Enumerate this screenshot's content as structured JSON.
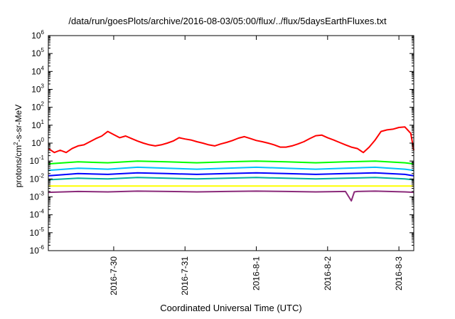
{
  "chart_data": {
    "type": "line",
    "title": "/data/run/goesPlots/archive/2016-08-03/05:00/flux/../flux/5daysEarthFluxes.txt",
    "xlabel": "Coordinated Universal Time (UTC)",
    "ylabel": {
      "prefix": "protons/cm",
      "sup": "2",
      "suffix": "-s-sr-MeV"
    },
    "yscale": "log",
    "ylim": [
      1e-06,
      1000000.0
    ],
    "yticks": [
      {
        "value": 1e-06,
        "base": "10",
        "exp": "-6"
      },
      {
        "value": 1e-05,
        "base": "10",
        "exp": "-5"
      },
      {
        "value": 0.0001,
        "base": "10",
        "exp": "-4"
      },
      {
        "value": 0.001,
        "base": "10",
        "exp": "-3"
      },
      {
        "value": 0.01,
        "base": "10",
        "exp": "-2"
      },
      {
        "value": 0.1,
        "base": "10",
        "exp": "-1"
      },
      {
        "value": 1,
        "base": "10",
        "exp": "0"
      },
      {
        "value": 10.0,
        "base": "10",
        "exp": "1"
      },
      {
        "value": 100.0,
        "base": "10",
        "exp": "2"
      },
      {
        "value": 1000.0,
        "base": "10",
        "exp": "3"
      },
      {
        "value": 10000.0,
        "base": "10",
        "exp": "4"
      },
      {
        "value": 100000.0,
        "base": "10",
        "exp": "5"
      },
      {
        "value": 1000000.0,
        "base": "10",
        "exp": "6"
      }
    ],
    "xlim": [
      "2016-07-29 02:00",
      "2016-08-03 05:00"
    ],
    "xticks": [
      {
        "label": "2016-7-30",
        "value": "2016-07-30 00:00"
      },
      {
        "label": "2016-7-31",
        "value": "2016-07-31 00:00"
      },
      {
        "label": "2016-8-1",
        "value": "2016-08-01 00:00"
      },
      {
        "label": "2016-8-2",
        "value": "2016-08-02 00:00"
      },
      {
        "label": "2016-8-3",
        "value": "2016-08-03 00:00"
      }
    ],
    "grid": false,
    "legend": "none",
    "series": [
      {
        "color": "#ff0000",
        "x": [
          "2016-07-29 02:00",
          "2016-07-29 04:00",
          "2016-07-29 06:00",
          "2016-07-29 08:00",
          "2016-07-29 10:00",
          "2016-07-29 12:00",
          "2016-07-29 14:00",
          "2016-07-29 16:00",
          "2016-07-29 18:00",
          "2016-07-29 20:00",
          "2016-07-29 22:00",
          "2016-07-30 00:00",
          "2016-07-30 02:00",
          "2016-07-30 04:00",
          "2016-07-30 06:00",
          "2016-07-30 08:00",
          "2016-07-30 10:00",
          "2016-07-30 12:00",
          "2016-07-30 14:00",
          "2016-07-30 16:00",
          "2016-07-30 18:00",
          "2016-07-30 20:00",
          "2016-07-30 22:00",
          "2016-07-31 00:00",
          "2016-07-31 02:00",
          "2016-07-31 04:00",
          "2016-07-31 06:00",
          "2016-07-31 08:00",
          "2016-07-31 10:00",
          "2016-07-31 12:00",
          "2016-07-31 14:00",
          "2016-07-31 16:00",
          "2016-07-31 18:00",
          "2016-07-31 20:00",
          "2016-07-31 22:00",
          "2016-08-01 00:00",
          "2016-08-01 02:00",
          "2016-08-01 04:00",
          "2016-08-01 06:00",
          "2016-08-01 08:00",
          "2016-08-01 10:00",
          "2016-08-01 12:00",
          "2016-08-01 14:00",
          "2016-08-01 16:00",
          "2016-08-01 18:00",
          "2016-08-01 20:00",
          "2016-08-01 22:00",
          "2016-08-02 00:00",
          "2016-08-02 02:00",
          "2016-08-02 04:00",
          "2016-08-02 06:00",
          "2016-08-02 08:00",
          "2016-08-02 10:00",
          "2016-08-02 12:00",
          "2016-08-02 14:00",
          "2016-08-02 16:00",
          "2016-08-02 18:00",
          "2016-08-02 20:00",
          "2016-08-02 22:00",
          "2016-08-03 00:00",
          "2016-08-03 02:00",
          "2016-08-03 04:00",
          "2016-08-03 05:00"
        ],
        "values": [
          0.5,
          0.3,
          0.4,
          0.3,
          0.5,
          0.7,
          0.8,
          1.2,
          1.8,
          2.5,
          4.5,
          3.0,
          2.0,
          2.5,
          1.8,
          1.3,
          1.0,
          0.8,
          0.7,
          0.8,
          1.0,
          1.3,
          2.0,
          1.7,
          1.5,
          1.2,
          1.0,
          0.8,
          0.7,
          0.9,
          1.1,
          1.4,
          1.9,
          2.3,
          1.8,
          1.4,
          1.2,
          1.0,
          0.8,
          0.6,
          0.6,
          0.7,
          0.9,
          1.2,
          1.8,
          2.6,
          2.8,
          2.0,
          1.5,
          1.1,
          0.8,
          0.6,
          0.5,
          0.3,
          0.6,
          1.5,
          4.5,
          5.5,
          6.0,
          7.5,
          8.0,
          3.5,
          0.4
        ]
      },
      {
        "color": "#00ff00",
        "x": [
          "2016-07-29 02:00",
          "2016-07-29 12:00",
          "2016-07-29 22:00",
          "2016-07-30 08:00",
          "2016-07-30 18:00",
          "2016-07-31 04:00",
          "2016-07-31 14:00",
          "2016-08-01 00:00",
          "2016-08-01 10:00",
          "2016-08-01 20:00",
          "2016-08-02 06:00",
          "2016-08-02 16:00",
          "2016-08-03 02:00",
          "2016-08-03 05:00"
        ],
        "values": [
          0.07,
          0.09,
          0.08,
          0.1,
          0.09,
          0.08,
          0.09,
          0.1,
          0.09,
          0.08,
          0.09,
          0.1,
          0.08,
          0.07
        ]
      },
      {
        "color": "#00bfff",
        "x": [
          "2016-07-29 02:00",
          "2016-07-29 12:00",
          "2016-07-29 22:00",
          "2016-07-30 08:00",
          "2016-07-30 18:00",
          "2016-07-31 04:00",
          "2016-07-31 14:00",
          "2016-08-01 00:00",
          "2016-08-01 10:00",
          "2016-08-01 20:00",
          "2016-08-02 06:00",
          "2016-08-02 16:00",
          "2016-08-03 02:00",
          "2016-08-03 05:00"
        ],
        "values": [
          0.03,
          0.04,
          0.035,
          0.045,
          0.04,
          0.035,
          0.04,
          0.045,
          0.04,
          0.035,
          0.04,
          0.045,
          0.035,
          0.03
        ]
      },
      {
        "color": "#0000ff",
        "x": [
          "2016-07-29 02:00",
          "2016-07-29 12:00",
          "2016-07-29 22:00",
          "2016-07-30 08:00",
          "2016-07-30 18:00",
          "2016-07-31 04:00",
          "2016-07-31 14:00",
          "2016-08-01 00:00",
          "2016-08-01 10:00",
          "2016-08-01 20:00",
          "2016-08-02 06:00",
          "2016-08-02 16:00",
          "2016-08-03 02:00",
          "2016-08-03 05:00"
        ],
        "values": [
          0.015,
          0.02,
          0.018,
          0.022,
          0.02,
          0.018,
          0.02,
          0.022,
          0.02,
          0.018,
          0.02,
          0.022,
          0.018,
          0.015
        ]
      },
      {
        "color": "#00b0a0",
        "x": [
          "2016-07-29 02:00",
          "2016-07-29 12:00",
          "2016-07-29 22:00",
          "2016-07-30 08:00",
          "2016-07-30 18:00",
          "2016-07-31 04:00",
          "2016-07-31 14:00",
          "2016-08-01 00:00",
          "2016-08-01 10:00",
          "2016-08-01 20:00",
          "2016-08-02 06:00",
          "2016-08-02 16:00",
          "2016-08-03 02:00",
          "2016-08-03 05:00"
        ],
        "values": [
          0.009,
          0.011,
          0.01,
          0.012,
          0.011,
          0.01,
          0.011,
          0.012,
          0.011,
          0.01,
          0.011,
          0.012,
          0.01,
          0.009
        ]
      },
      {
        "color": "#ffff00",
        "x": [
          "2016-07-29 02:00",
          "2016-07-30 00:00",
          "2016-07-31 00:00",
          "2016-08-01 00:00",
          "2016-08-02 00:00",
          "2016-08-03 00:00",
          "2016-08-03 05:00"
        ],
        "values": [
          0.004,
          0.004,
          0.004,
          0.004,
          0.004,
          0.004,
          0.004
        ]
      },
      {
        "color": "#8b2a7a",
        "x": [
          "2016-07-29 02:00",
          "2016-07-29 12:00",
          "2016-07-29 22:00",
          "2016-07-30 08:00",
          "2016-07-30 18:00",
          "2016-07-31 04:00",
          "2016-07-31 14:00",
          "2016-08-01 00:00",
          "2016-08-01 10:00",
          "2016-08-01 20:00",
          "2016-08-02 06:00",
          "2016-08-02 08:00",
          "2016-08-02 09:00",
          "2016-08-02 10:00",
          "2016-08-02 16:00",
          "2016-08-03 02:00",
          "2016-08-03 05:00"
        ],
        "values": [
          0.0018,
          0.002,
          0.0019,
          0.0021,
          0.002,
          0.0019,
          0.002,
          0.0021,
          0.002,
          0.0019,
          0.002,
          0.0006,
          0.0019,
          0.002,
          0.0021,
          0.0019,
          0.0018
        ]
      }
    ]
  }
}
